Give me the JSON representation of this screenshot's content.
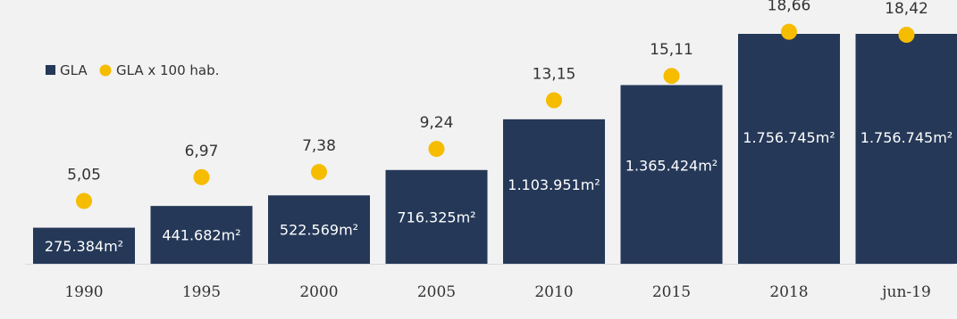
{
  "chart_data": {
    "type": "bar",
    "categories": [
      "1990",
      "1995",
      "2000",
      "2005",
      "2010",
      "2015",
      "2018",
      "jun-19"
    ],
    "series": [
      {
        "name": "GLA",
        "values": [
          275384,
          441682,
          522569,
          716325,
          1103951,
          1365424,
          1756745,
          1756745
        ],
        "labels": [
          "275.384m²",
          "441.682m²",
          "522.569m²",
          "716.325m²",
          "1.103.951m²",
          "1.365.424m²",
          "1.756.745m²",
          "1.756.745m²"
        ],
        "color": "#253858",
        "render": "bar"
      },
      {
        "name": "GLA x 100 hab.",
        "values": [
          5.05,
          6.97,
          7.38,
          9.24,
          13.15,
          15.11,
          18.66,
          18.42
        ],
        "labels": [
          "5,05",
          "6,97",
          "7,38",
          "9,24",
          "13,15",
          "15,11",
          "18,66",
          "18,42"
        ],
        "color": "#f5bc00",
        "render": "dot"
      }
    ],
    "legend_position": "top-left",
    "grid": false,
    "ylim_bars": [
      0,
      1756745
    ],
    "ylim_dots": [
      0,
      20.5
    ]
  }
}
